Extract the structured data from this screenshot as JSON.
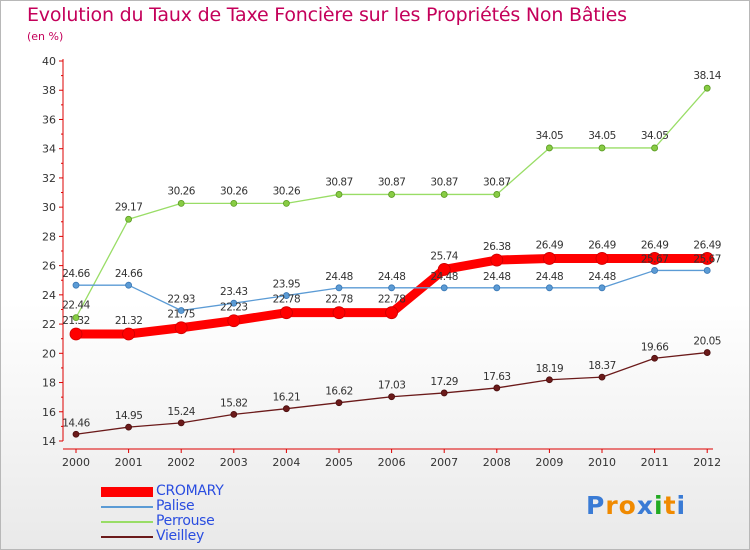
{
  "title": "Evolution du Taux de Taxe Foncière sur les Propriétés Non Bâties",
  "unit_label": "(en %)",
  "logo_text": "Proxiti",
  "colors": {
    "title": "#c4005a",
    "legend_text": "#2a4de0",
    "CROMARY": "#ff0000",
    "Palise": "#5b9bd5",
    "Perrouse": "#99dd66",
    "Vieilley": "#6b1a1a"
  },
  "chart_data": {
    "type": "line",
    "title": "Evolution du Taux de Taxe Foncière sur les Propriétés Non Bâties",
    "ylabel": "(en %)",
    "xlabel": "",
    "ylim": [
      14,
      40
    ],
    "yticks": [
      14,
      16,
      18,
      20,
      22,
      24,
      26,
      28,
      30,
      32,
      34,
      36,
      38,
      40
    ],
    "grid": false,
    "legend_position": "bottom-left",
    "x": [
      "2000",
      "2001",
      "2002",
      "2003",
      "2004",
      "2005",
      "2006",
      "2007",
      "2008",
      "2009",
      "2010",
      "2011",
      "2012"
    ],
    "series": [
      {
        "name": "CROMARY",
        "values": [
          21.32,
          21.32,
          21.75,
          22.23,
          22.78,
          22.78,
          22.78,
          25.74,
          26.38,
          26.49,
          26.49,
          26.49,
          26.49
        ]
      },
      {
        "name": "Palise",
        "values": [
          24.66,
          24.66,
          22.93,
          23.43,
          23.95,
          24.48,
          24.48,
          24.48,
          24.48,
          24.48,
          24.48,
          25.67,
          25.67
        ]
      },
      {
        "name": "Perrouse",
        "values": [
          22.44,
          29.17,
          30.26,
          30.26,
          30.26,
          30.87,
          30.87,
          30.87,
          30.87,
          34.05,
          34.05,
          34.05,
          38.14
        ]
      },
      {
        "name": "Vieilley",
        "values": [
          14.46,
          14.95,
          15.24,
          15.82,
          16.21,
          16.62,
          17.03,
          17.29,
          17.63,
          18.19,
          18.37,
          19.66,
          20.05
        ]
      }
    ]
  }
}
